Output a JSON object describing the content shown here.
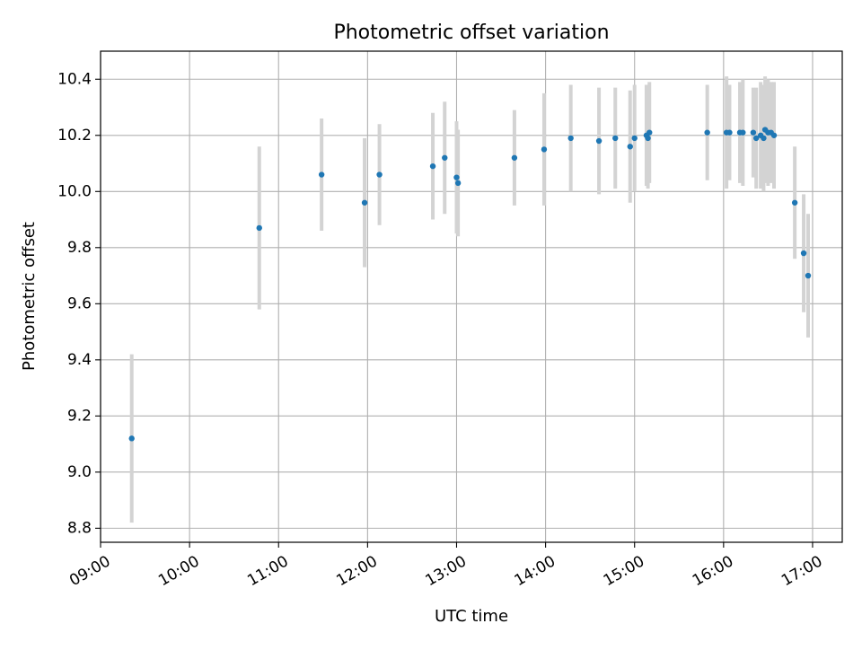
{
  "chart_data": {
    "type": "scatter",
    "title": "Photometric offset variation",
    "xlabel": "UTC time",
    "ylabel": "Photometric offset",
    "x_unit": "UTC time (HH:MM)",
    "xlim": [
      "09:00",
      "17:20"
    ],
    "ylim": [
      8.75,
      10.5
    ],
    "x_ticks": [
      "09:00",
      "10:00",
      "11:00",
      "12:00",
      "13:00",
      "14:00",
      "15:00",
      "16:00",
      "17:00"
    ],
    "y_ticks": [
      "8.8",
      "9.0",
      "9.2",
      "9.4",
      "9.6",
      "9.8",
      "10.0",
      "10.2",
      "10.4"
    ],
    "grid": true,
    "colors": {
      "points": "#1f77b4",
      "errorbars": "#d3d3d3",
      "grid": "#b0b0b0"
    },
    "series": [
      {
        "points": [
          {
            "t": "09:21",
            "y": 9.12,
            "err": 0.3
          },
          {
            "t": "10:47",
            "y": 9.87,
            "err": 0.29
          },
          {
            "t": "11:29",
            "y": 10.06,
            "err": 0.2
          },
          {
            "t": "11:58",
            "y": 9.96,
            "err": 0.23
          },
          {
            "t": "12:08",
            "y": 10.06,
            "err": 0.18
          },
          {
            "t": "12:44",
            "y": 10.09,
            "err": 0.19
          },
          {
            "t": "12:52",
            "y": 10.12,
            "err": 0.2
          },
          {
            "t": "13:00",
            "y": 10.05,
            "err": 0.2
          },
          {
            "t": "13:01",
            "y": 10.03,
            "err": 0.19
          },
          {
            "t": "13:39",
            "y": 10.12,
            "err": 0.17
          },
          {
            "t": "13:59",
            "y": 10.15,
            "err": 0.2
          },
          {
            "t": "14:17",
            "y": 10.19,
            "err": 0.19
          },
          {
            "t": "14:36",
            "y": 10.18,
            "err": 0.19
          },
          {
            "t": "14:47",
            "y": 10.19,
            "err": 0.18
          },
          {
            "t": "14:57",
            "y": 10.16,
            "err": 0.2
          },
          {
            "t": "15:00",
            "y": 10.19,
            "err": 0.19
          },
          {
            "t": "15:08",
            "y": 10.2,
            "err": 0.18
          },
          {
            "t": "15:09",
            "y": 10.19,
            "err": 0.18
          },
          {
            "t": "15:10",
            "y": 10.21,
            "err": 0.18
          },
          {
            "t": "15:49",
            "y": 10.21,
            "err": 0.17
          },
          {
            "t": "16:02",
            "y": 10.21,
            "err": 0.2
          },
          {
            "t": "16:04",
            "y": 10.21,
            "err": 0.17
          },
          {
            "t": "16:11",
            "y": 10.21,
            "err": 0.18
          },
          {
            "t": "16:13",
            "y": 10.21,
            "err": 0.19
          },
          {
            "t": "16:20",
            "y": 10.21,
            "err": 0.16
          },
          {
            "t": "16:22",
            "y": 10.19,
            "err": 0.18
          },
          {
            "t": "16:25",
            "y": 10.2,
            "err": 0.19
          },
          {
            "t": "16:27",
            "y": 10.19,
            "err": 0.19
          },
          {
            "t": "16:28",
            "y": 10.22,
            "err": 0.19
          },
          {
            "t": "16:30",
            "y": 10.21,
            "err": 0.19
          },
          {
            "t": "16:32",
            "y": 10.21,
            "err": 0.18
          },
          {
            "t": "16:34",
            "y": 10.2,
            "err": 0.19
          },
          {
            "t": "16:48",
            "y": 9.96,
            "err": 0.2
          },
          {
            "t": "16:54",
            "y": 9.78,
            "err": 0.21
          },
          {
            "t": "16:57",
            "y": 9.7,
            "err": 0.22
          }
        ]
      }
    ]
  }
}
